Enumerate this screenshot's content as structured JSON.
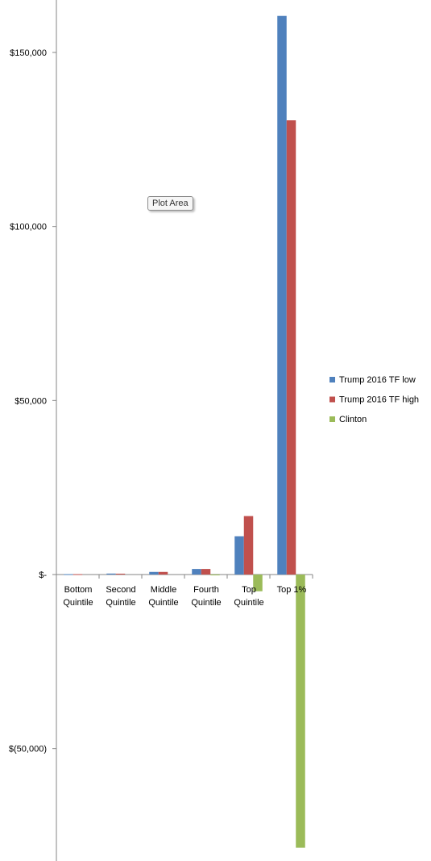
{
  "chart_data": {
    "type": "bar",
    "categories": [
      [
        "Bottom",
        "Quintile"
      ],
      [
        "Second",
        "Quintile"
      ],
      [
        "Middle",
        "Quintile"
      ],
      [
        "Fourth",
        "Quintile"
      ],
      [
        "Top",
        "Quintile"
      ],
      [
        "Top 1%"
      ]
    ],
    "series": [
      {
        "name": "Trump 2016 TF low",
        "color": "#4f81bd",
        "values": [
          110,
          280,
          750,
          1600,
          11000,
          160500
        ]
      },
      {
        "name": "Trump 2016 TF high",
        "color": "#c0504d",
        "values": [
          110,
          250,
          750,
          1600,
          16800,
          130500
        ]
      },
      {
        "name": "Clinton",
        "color": "#9bbb59",
        "values": [
          0,
          0,
          0,
          -20,
          -4800,
          -78500
        ]
      }
    ],
    "ylim": [
      -82000,
      165000
    ],
    "yticks": [
      {
        "value": 150000,
        "label": "$150,000"
      },
      {
        "value": 100000,
        "label": "$100,000"
      },
      {
        "value": 50000,
        "label": "$50,000"
      },
      {
        "value": 0,
        "label": "$-"
      },
      {
        "value": -50000,
        "label": "$(50,000)"
      }
    ],
    "grid": false,
    "legend_position": "right",
    "title": "",
    "xlabel": "",
    "ylabel": ""
  },
  "tooltip": {
    "text": "Plot Area"
  }
}
